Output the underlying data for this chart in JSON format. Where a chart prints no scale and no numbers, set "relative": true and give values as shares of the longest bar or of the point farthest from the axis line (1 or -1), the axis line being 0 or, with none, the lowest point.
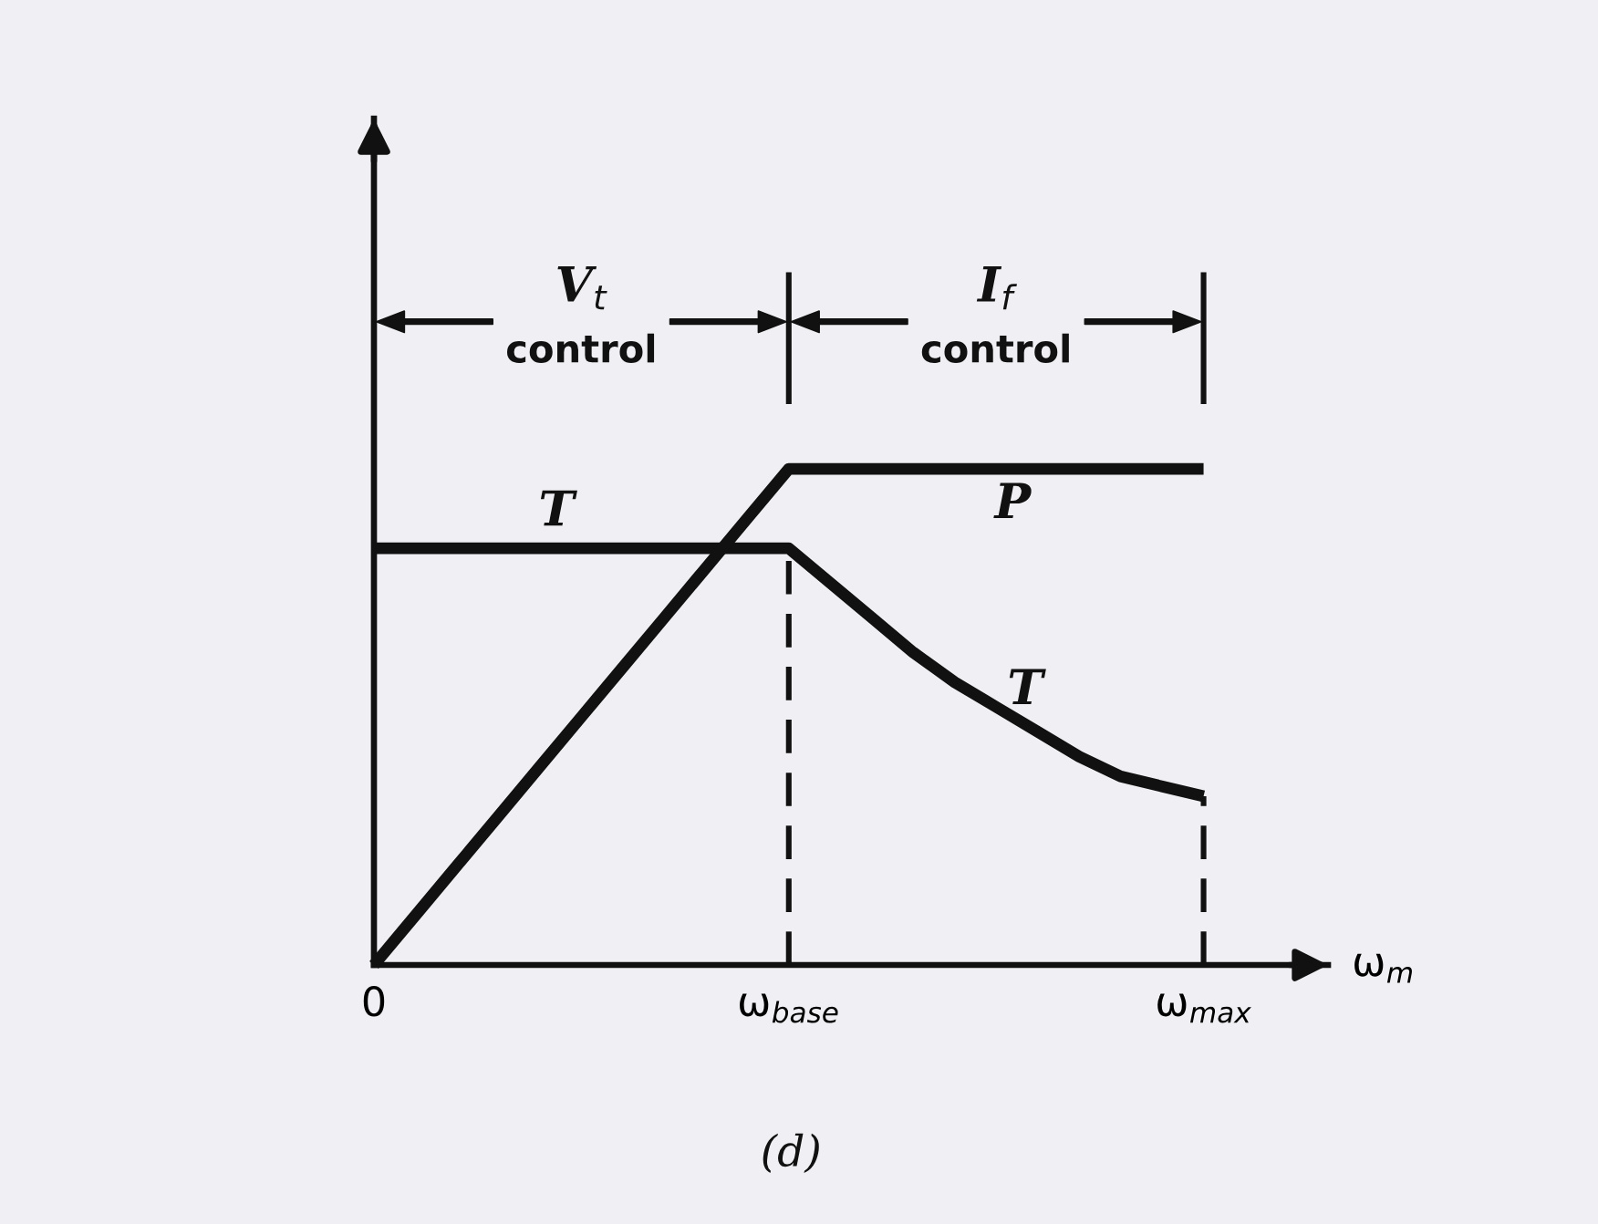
{
  "chart_data": {
    "type": "line",
    "relative": true,
    "xlabel": "ω$_{m}$",
    "categories": [
      "0",
      null,
      null,
      null,
      null,
      null,
      null,
      null,
      null,
      null,
      "ω$_{base}$",
      null,
      null,
      null,
      null,
      null,
      null,
      null,
      null,
      null,
      "ω$_{max}$"
    ],
    "tick_labels": "x",
    "series": [
      {
        "name": "T",
        "color": "#111111",
        "values": [
          0.84,
          0.84,
          0.84,
          0.84,
          0.84,
          0.84,
          0.84,
          0.84,
          0.84,
          0.84,
          0.84,
          0.77,
          0.7,
          0.63,
          0.57,
          0.52,
          0.47,
          0.42,
          0.38,
          0.36,
          0.34
        ]
      },
      {
        "name": "P",
        "color": "#111111",
        "values": [
          0,
          0.1,
          0.2,
          0.3,
          0.4,
          0.5,
          0.6,
          0.7,
          0.8,
          0.9,
          1,
          1,
          1,
          1,
          1,
          1,
          1,
          1,
          1,
          1,
          1
        ]
      }
    ],
    "ref_lines": [
      {
        "axis": "x",
        "value": "ω$_{base}$",
        "color": "#111111",
        "line_style": "dashed"
      },
      {
        "axis": "x",
        "value": "ω$_{max}$",
        "color": "#111111",
        "line_style": "dashed"
      }
    ],
    "annotations": [
      "V$_{t}$\ncontrol",
      "I$_{f}$\ncontrol",
      "(d)"
    ]
  }
}
